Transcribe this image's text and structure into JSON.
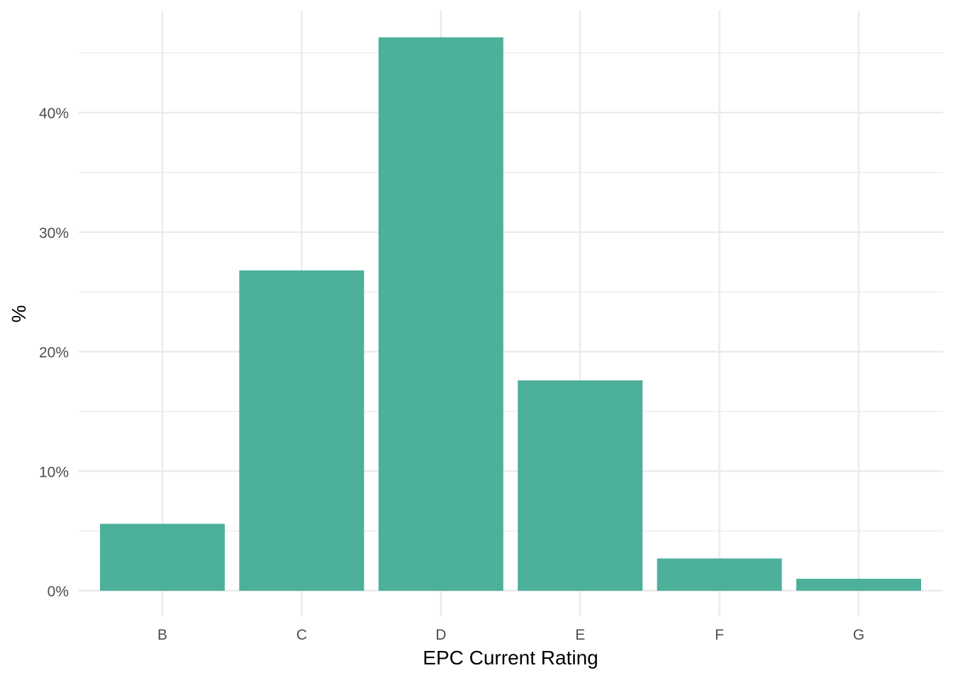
{
  "chart_data": {
    "type": "bar",
    "categories": [
      "B",
      "C",
      "D",
      "E",
      "F",
      "G"
    ],
    "values": [
      5.6,
      26.8,
      46.3,
      17.6,
      2.7,
      1.0
    ],
    "xlabel": "EPC Current Rating",
    "ylabel": "%",
    "ylim": [
      0,
      47
    ],
    "yticks": [
      0,
      10,
      20,
      30,
      40
    ],
    "ytick_labels": [
      "0%",
      "10%",
      "20%",
      "30%",
      "40%"
    ],
    "grid": true,
    "legend": "none",
    "colors": {
      "bar": "#4cb09b",
      "grid": "#ebebeb",
      "background": "#ffffff"
    }
  }
}
